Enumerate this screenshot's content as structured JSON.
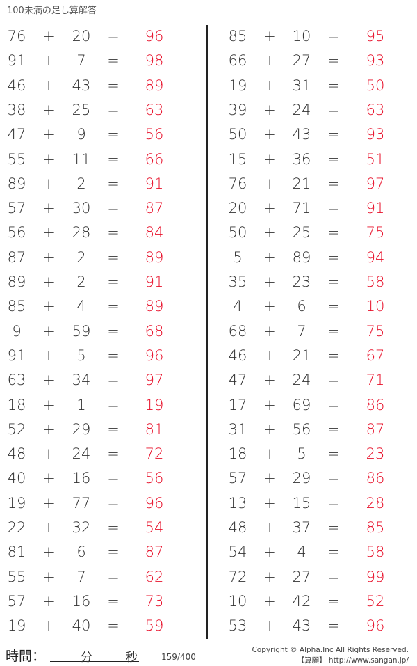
{
  "title": "100未満の足し算解答",
  "operator": "+",
  "equals": "=",
  "answer_color": "#e8102a",
  "left": [
    [
      76,
      20,
      96
    ],
    [
      91,
      7,
      98
    ],
    [
      46,
      43,
      89
    ],
    [
      38,
      25,
      63
    ],
    [
      47,
      9,
      56
    ],
    [
      55,
      11,
      66
    ],
    [
      89,
      2,
      91
    ],
    [
      57,
      30,
      87
    ],
    [
      56,
      28,
      84
    ],
    [
      87,
      2,
      89
    ],
    [
      89,
      2,
      91
    ],
    [
      85,
      4,
      89
    ],
    [
      9,
      59,
      68
    ],
    [
      91,
      5,
      96
    ],
    [
      63,
      34,
      97
    ],
    [
      18,
      1,
      19
    ],
    [
      52,
      29,
      81
    ],
    [
      48,
      24,
      72
    ],
    [
      40,
      16,
      56
    ],
    [
      19,
      77,
      96
    ],
    [
      22,
      32,
      54
    ],
    [
      81,
      6,
      87
    ],
    [
      55,
      7,
      62
    ],
    [
      57,
      16,
      73
    ],
    [
      19,
      40,
      59
    ]
  ],
  "right": [
    [
      85,
      10,
      95
    ],
    [
      66,
      27,
      93
    ],
    [
      19,
      31,
      50
    ],
    [
      39,
      24,
      63
    ],
    [
      50,
      43,
      93
    ],
    [
      15,
      36,
      51
    ],
    [
      76,
      21,
      97
    ],
    [
      20,
      71,
      91
    ],
    [
      50,
      25,
      75
    ],
    [
      5,
      89,
      94
    ],
    [
      35,
      23,
      58
    ],
    [
      4,
      6,
      10
    ],
    [
      68,
      7,
      75
    ],
    [
      46,
      21,
      67
    ],
    [
      47,
      24,
      71
    ],
    [
      17,
      69,
      86
    ],
    [
      31,
      56,
      87
    ],
    [
      18,
      5,
      23
    ],
    [
      57,
      29,
      86
    ],
    [
      13,
      15,
      28
    ],
    [
      48,
      37,
      85
    ],
    [
      54,
      4,
      58
    ],
    [
      72,
      27,
      99
    ],
    [
      10,
      42,
      52
    ],
    [
      53,
      43,
      96
    ]
  ],
  "footer": {
    "time_label": "時間：",
    "minutes": "分",
    "seconds": "秒",
    "page": "159/400",
    "copyright": "Copyright © Alpha.Inc All Rights Reserved.",
    "site": "【算願】 http://www.sangan.jp/"
  }
}
